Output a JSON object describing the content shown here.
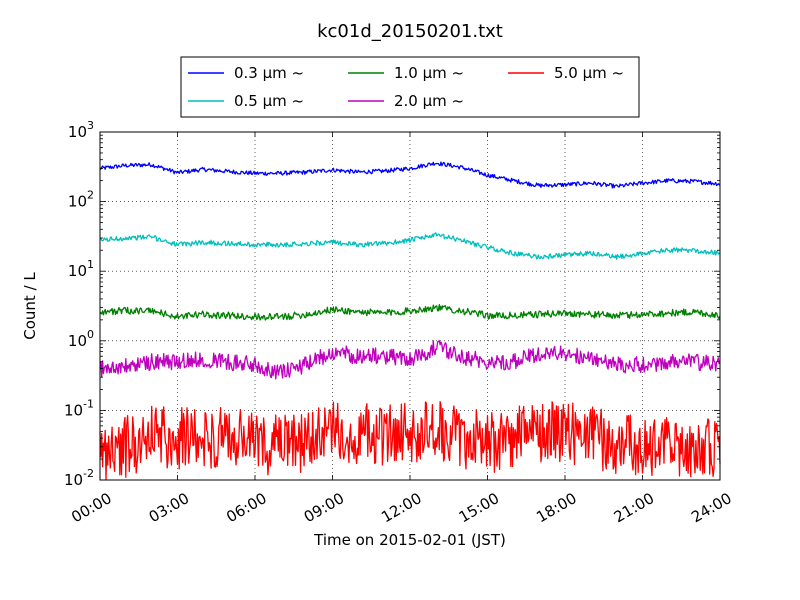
{
  "chart_data": {
    "type": "line",
    "title": "kc01d_20150201.txt",
    "xlabel": "Time on 2015-02-01 (JST)",
    "ylabel": "Count / L",
    "y_scale": "log",
    "ylim": [
      0.01,
      1000
    ],
    "xlim": [
      "00:00",
      "24:00"
    ],
    "x_tick_labels": [
      "00:00",
      "03:00",
      "06:00",
      "09:00",
      "12:00",
      "15:00",
      "18:00",
      "21:00",
      "24:00"
    ],
    "y_tick_labels": [
      {
        "base": "10",
        "exp": "-2"
      },
      {
        "base": "10",
        "exp": "-1"
      },
      {
        "base": "10",
        "exp": "0"
      },
      {
        "base": "10",
        "exp": "1"
      },
      {
        "base": "10",
        "exp": "2"
      },
      {
        "base": "10",
        "exp": "3"
      }
    ],
    "grid": true,
    "legend_position": "top-center",
    "series": [
      {
        "name": "0.3 μm ~",
        "color": "#0000ff",
        "noise": 0.03,
        "x": [
          "00:00",
          "01:00",
          "02:00",
          "03:00",
          "04:00",
          "05:00",
          "06:00",
          "07:00",
          "08:00",
          "09:00",
          "10:00",
          "11:00",
          "12:00",
          "13:00",
          "14:00",
          "15:00",
          "16:00",
          "17:00",
          "18:00",
          "19:00",
          "20:00",
          "21:00",
          "22:00",
          "23:00",
          "24:00"
        ],
        "y": [
          300,
          330,
          340,
          260,
          290,
          270,
          255,
          255,
          265,
          285,
          265,
          275,
          300,
          360,
          310,
          240,
          200,
          170,
          175,
          185,
          165,
          185,
          200,
          195,
          180
        ]
      },
      {
        "name": "0.5 μm ~",
        "color": "#00bfbf",
        "noise": 0.035,
        "x": [
          "00:00",
          "01:00",
          "02:00",
          "03:00",
          "04:00",
          "05:00",
          "06:00",
          "07:00",
          "08:00",
          "09:00",
          "10:00",
          "11:00",
          "12:00",
          "13:00",
          "14:00",
          "15:00",
          "16:00",
          "17:00",
          "18:00",
          "19:00",
          "20:00",
          "21:00",
          "22:00",
          "23:00",
          "24:00"
        ],
        "y": [
          28,
          30,
          31,
          24,
          26,
          25,
          24,
          24,
          25,
          26,
          24,
          25,
          28,
          33,
          28,
          22,
          18,
          16,
          17,
          18,
          16,
          18,
          20,
          20,
          18
        ]
      },
      {
        "name": "1.0 μm ~",
        "color": "#008000",
        "noise": 0.05,
        "x": [
          "00:00",
          "01:00",
          "02:00",
          "03:00",
          "04:00",
          "05:00",
          "06:00",
          "07:00",
          "08:00",
          "09:00",
          "10:00",
          "11:00",
          "12:00",
          "13:00",
          "14:00",
          "15:00",
          "16:00",
          "17:00",
          "18:00",
          "19:00",
          "20:00",
          "21:00",
          "22:00",
          "23:00",
          "24:00"
        ],
        "y": [
          2.6,
          2.7,
          2.7,
          2.2,
          2.4,
          2.3,
          2.2,
          2.2,
          2.4,
          2.8,
          2.6,
          2.5,
          2.7,
          3.0,
          2.7,
          2.3,
          2.3,
          2.4,
          2.5,
          2.4,
          2.3,
          2.4,
          2.5,
          2.6,
          2.3
        ]
      },
      {
        "name": "2.0 μm ~",
        "color": "#bf00bf",
        "noise": 0.12,
        "x": [
          "00:00",
          "01:00",
          "02:00",
          "03:00",
          "04:00",
          "05:00",
          "06:00",
          "07:00",
          "08:00",
          "09:00",
          "10:00",
          "11:00",
          "12:00",
          "13:00",
          "14:00",
          "15:00",
          "16:00",
          "17:00",
          "18:00",
          "19:00",
          "20:00",
          "21:00",
          "22:00",
          "23:00",
          "24:00"
        ],
        "y": [
          0.4,
          0.42,
          0.5,
          0.5,
          0.55,
          0.5,
          0.45,
          0.35,
          0.45,
          0.7,
          0.6,
          0.6,
          0.55,
          0.8,
          0.6,
          0.5,
          0.5,
          0.65,
          0.65,
          0.55,
          0.45,
          0.45,
          0.5,
          0.5,
          0.45
        ]
      },
      {
        "name": "5.0 μm ~",
        "color": "#ff0000",
        "noise": 0.45,
        "x": [
          "00:00",
          "01:00",
          "02:00",
          "03:00",
          "04:00",
          "05:00",
          "06:00",
          "07:00",
          "08:00",
          "09:00",
          "10:00",
          "11:00",
          "12:00",
          "13:00",
          "14:00",
          "15:00",
          "16:00",
          "17:00",
          "18:00",
          "19:00",
          "20:00",
          "21:00",
          "22:00",
          "23:00",
          "24:00"
        ],
        "y": [
          0.025,
          0.03,
          0.045,
          0.04,
          0.04,
          0.04,
          0.035,
          0.03,
          0.035,
          0.05,
          0.045,
          0.045,
          0.05,
          0.05,
          0.04,
          0.035,
          0.04,
          0.05,
          0.05,
          0.04,
          0.035,
          0.03,
          0.03,
          0.03,
          0.025
        ]
      }
    ]
  }
}
